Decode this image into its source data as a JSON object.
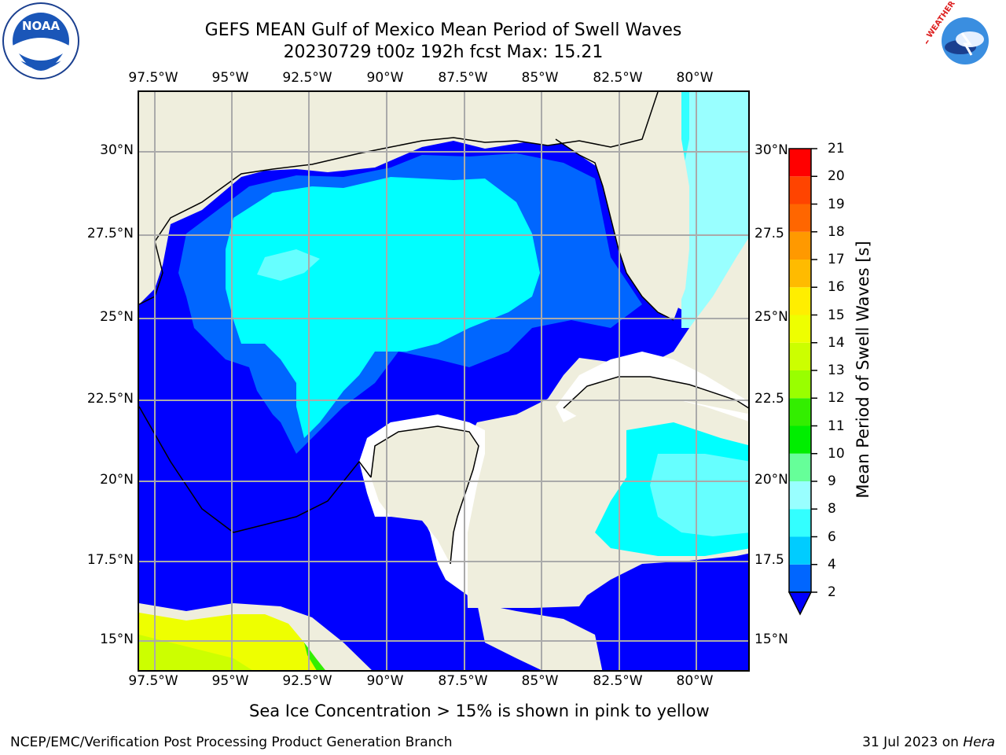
{
  "title": "GEFS MEAN Gulf of Mexico Mean Period of Swell Waves",
  "subtitle": "20230729 t00z 192h fcst   Max: 15.21",
  "lon_labels": [
    "97.5°W",
    "95°W",
    "92.5°W",
    "90°W",
    "87.5°W",
    "85°W",
    "82.5°W",
    "80°W"
  ],
  "lat_labels_left": [
    "30°N",
    "27.5°N",
    "25°N",
    "22.5°N",
    "20°N",
    "17.5°N",
    "15°N"
  ],
  "lat_labels_right": [
    "30°N",
    "27.5",
    "25°N",
    "22.5",
    "20°N",
    "17.5",
    "15°N"
  ],
  "colorbar": {
    "label": "Mean Period of Swell Waves [s]",
    "ticks": [
      "21",
      "20",
      "19",
      "18",
      "17",
      "16",
      "15",
      "14",
      "13",
      "12",
      "11",
      "10",
      "9",
      "8",
      "6",
      "4",
      "2"
    ],
    "bins": [
      {
        "from": 2,
        "to": 4,
        "color": "#0066ff"
      },
      {
        "from": 4,
        "to": 6,
        "color": "#00ccff"
      },
      {
        "from": 6,
        "to": 8,
        "color": "#33ffff"
      },
      {
        "from": 8,
        "to": 9,
        "color": "#99ffff"
      },
      {
        "from": 9,
        "to": 10,
        "color": "#66ff99"
      },
      {
        "from": 10,
        "to": 11,
        "color": "#00ee00"
      },
      {
        "from": 11,
        "to": 12,
        "color": "#33ee00"
      },
      {
        "from": 12,
        "to": 13,
        "color": "#99ff00"
      },
      {
        "from": 13,
        "to": 14,
        "color": "#ccff00"
      },
      {
        "from": 14,
        "to": 15,
        "color": "#eeff00"
      },
      {
        "from": 15,
        "to": 16,
        "color": "#ffee00"
      },
      {
        "from": 16,
        "to": 17,
        "color": "#ffbb00"
      },
      {
        "from": 17,
        "to": 18,
        "color": "#ff9900"
      },
      {
        "from": 18,
        "to": 19,
        "color": "#ff6600"
      },
      {
        "from": 19,
        "to": 20,
        "color": "#ff4400"
      },
      {
        "from": 20,
        "to": 21,
        "color": "#ff0000"
      }
    ],
    "under_color": "#0000ff"
  },
  "map_colors": {
    "land": "#efeedd",
    "deep_blue": "#0000ff",
    "blue": "#0066ff",
    "cyan": "#00ffff",
    "light_cyan": "#66ffff",
    "pale_cyan": "#99ffff",
    "yellow": "#eeff00",
    "yellow_green": "#ccff00",
    "green": "#33ee00",
    "grid": "#aaaaaa"
  },
  "footer_note": "Sea Ice Concentration > 15% is shown in pink to yellow",
  "credit": "NCEP/EMC/Verification Post Processing Product Generation Branch",
  "date": "31 Jul 2023 on",
  "date_host": "Hera",
  "logos": {
    "left": "noaa-logo",
    "right": "nws-logo"
  },
  "logo_text": {
    "noaa": "NOAA",
    "nws": "NATIONAL WEATHER SERVICE"
  }
}
